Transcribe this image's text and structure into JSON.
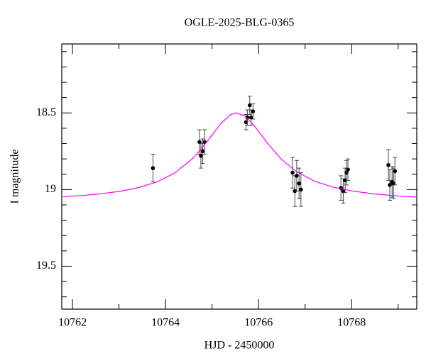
{
  "chart_data": {
    "type": "scatter",
    "title": "OGLE-2025-BLG-0365",
    "x_label": "HJD - 2450000",
    "y_label": "I magnitude",
    "xlim": [
      10761.77,
      10769.4
    ],
    "ylim": [
      18.05,
      19.78
    ],
    "y_inverted": true,
    "xticks": [
      10762,
      10764,
      10766,
      10768
    ],
    "xminorticks": [
      10763,
      10765,
      10767,
      10769
    ],
    "yticks": [
      18.5,
      19,
      19.5
    ],
    "yminorticks": [
      18.1,
      18.2,
      18.3,
      18.4,
      18.6,
      18.7,
      18.8,
      18.9,
      19.1,
      19.2,
      19.3,
      19.4,
      19.6,
      19.7
    ],
    "series": [
      {
        "type": "scatter",
        "color": "#000000",
        "x": [
          10763.73,
          10764.73,
          10764.76,
          10764.8,
          10764.84,
          10765.73,
          10765.76,
          10765.81,
          10765.84,
          10765.88,
          10766.73,
          10766.78,
          10766.82,
          10766.87,
          10766.91,
          10767.77,
          10767.82,
          10767.86,
          10767.89,
          10767.92,
          10768.79,
          10768.82,
          10768.87,
          10768.9,
          10768.93
        ],
        "values": [
          18.86,
          18.69,
          18.78,
          18.75,
          18.69,
          18.56,
          18.53,
          18.45,
          18.53,
          18.49,
          18.89,
          19.01,
          18.91,
          18.96,
          19.0,
          18.99,
          19.01,
          18.94,
          18.89,
          18.87,
          18.84,
          18.97,
          18.95,
          18.96,
          18.88
        ],
        "errors": [
          0.09,
          0.08,
          0.08,
          0.08,
          0.08,
          0.05,
          0.05,
          0.06,
          0.05,
          0.05,
          0.1,
          0.1,
          0.1,
          0.1,
          0.11,
          0.08,
          0.08,
          0.08,
          0.08,
          0.07,
          0.1,
          0.1,
          0.1,
          0.1,
          0.09
        ]
      },
      {
        "type": "line",
        "color": "#ff00ff",
        "x": [
          10761.8,
          10762.2,
          10762.6,
          10763.0,
          10763.4,
          10763.8,
          10764.2,
          10764.6,
          10764.9,
          10765.2,
          10765.4,
          10765.53,
          10765.7,
          10765.9,
          10766.2,
          10766.5,
          10766.8,
          10767.2,
          10767.6,
          10768.0,
          10768.5,
          10769.0,
          10769.4
        ],
        "values": [
          19.047,
          19.039,
          19.028,
          19.012,
          18.989,
          18.952,
          18.892,
          18.793,
          18.685,
          18.566,
          18.511,
          18.5,
          18.519,
          18.581,
          18.701,
          18.805,
          18.88,
          18.945,
          18.984,
          19.009,
          19.029,
          19.042,
          19.049
        ]
      }
    ]
  }
}
